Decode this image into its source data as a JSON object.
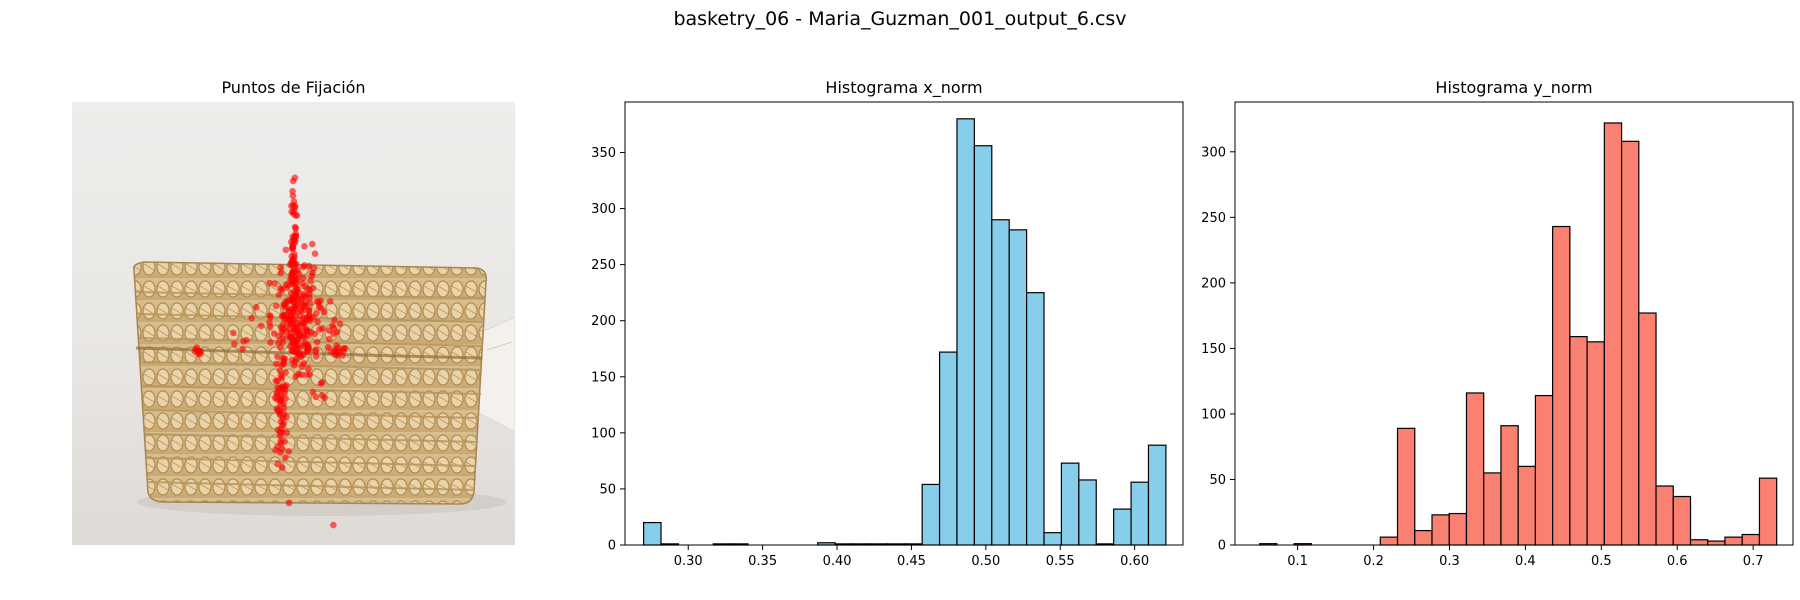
{
  "figure": {
    "suptitle": "basketry_06 - Maria_Guzman_001_output_6.csv"
  },
  "colors": {
    "x_hist": "#87ceeb",
    "y_hist": "#fa8072",
    "fixation": "#ff0000",
    "edge": "#000000"
  },
  "chart_data": [
    {
      "type": "scatter",
      "title": "Puntos de Fijación",
      "axis": "off",
      "background": "photo of a woven wicker basket box",
      "x_range": [
        0,
        1
      ],
      "y_range": [
        0,
        1
      ],
      "fixation_clusters": [
        {
          "cx": 0.5,
          "cy": 0.34,
          "sx": 0.004,
          "sy": 0.08,
          "n": 70
        },
        {
          "cx": 0.51,
          "cy": 0.47,
          "sx": 0.025,
          "sy": 0.06,
          "n": 150
        },
        {
          "cx": 0.52,
          "cy": 0.53,
          "sx": 0.03,
          "sy": 0.04,
          "n": 60
        },
        {
          "cx": 0.47,
          "cy": 0.68,
          "sx": 0.008,
          "sy": 0.07,
          "n": 60
        },
        {
          "cx": 0.28,
          "cy": 0.56,
          "sx": 0.006,
          "sy": 0.006,
          "n": 8
        },
        {
          "cx": 0.61,
          "cy": 0.56,
          "sx": 0.01,
          "sy": 0.008,
          "n": 12
        },
        {
          "cx": 0.59,
          "cy": 0.51,
          "sx": 0.006,
          "sy": 0.02,
          "n": 8
        },
        {
          "cx": 0.43,
          "cy": 0.48,
          "sx": 0.02,
          "sy": 0.02,
          "n": 6
        },
        {
          "cx": 0.4,
          "cy": 0.54,
          "sx": 0.03,
          "sy": 0.01,
          "n": 6
        },
        {
          "cx": 0.56,
          "cy": 0.7,
          "sx": 0.02,
          "sy": 0.04,
          "n": 6
        }
      ],
      "fixation_points": [
        [
          0.49,
          0.905
        ],
        [
          0.59,
          0.955
        ]
      ]
    },
    {
      "type": "bar",
      "title": "Histograma x_norm",
      "xlim": [
        0.2575,
        0.6325
      ],
      "ylim": [
        0,
        395
      ],
      "xticks": [
        0.3,
        0.35,
        0.4,
        0.45,
        0.5,
        0.55,
        0.6
      ],
      "xtick_labels": [
        "0.30",
        "0.35",
        "0.40",
        "0.45",
        "0.50",
        "0.55",
        "0.60"
      ],
      "yticks": [
        0,
        50,
        100,
        150,
        200,
        250,
        300,
        350
      ],
      "ytick_labels": [
        "0",
        "50",
        "100",
        "150",
        "200",
        "250",
        "300",
        "350"
      ],
      "bins_start": 0.27,
      "bin_width": 0.0117,
      "values": [
        20,
        1,
        0,
        0,
        1,
        1,
        0,
        0,
        0,
        0,
        2,
        1,
        1,
        1,
        1,
        1,
        54,
        172,
        380,
        356,
        290,
        281,
        225,
        11,
        73,
        58,
        1,
        32,
        56,
        89
      ]
    },
    {
      "type": "bar",
      "title": "Histograma y_norm",
      "xlim": [
        0.0175,
        0.7525
      ],
      "ylim": [
        0,
        338
      ],
      "xticks": [
        0.1,
        0.2,
        0.3,
        0.4,
        0.5,
        0.6,
        0.7
      ],
      "xtick_labels": [
        "0.1",
        "0.2",
        "0.3",
        "0.4",
        "0.5",
        "0.6",
        "0.7"
      ],
      "yticks": [
        0,
        50,
        100,
        150,
        200,
        250,
        300
      ],
      "ytick_labels": [
        "0",
        "50",
        "100",
        "150",
        "200",
        "250",
        "300"
      ],
      "bins_start": 0.05,
      "bin_width": 0.0227,
      "values": [
        1,
        0,
        1,
        0,
        0,
        0,
        0,
        6,
        89,
        11,
        23,
        24,
        116,
        55,
        91,
        60,
        114,
        243,
        159,
        155,
        322,
        308,
        177,
        45,
        37,
        4,
        3,
        6,
        8,
        51
      ]
    }
  ]
}
